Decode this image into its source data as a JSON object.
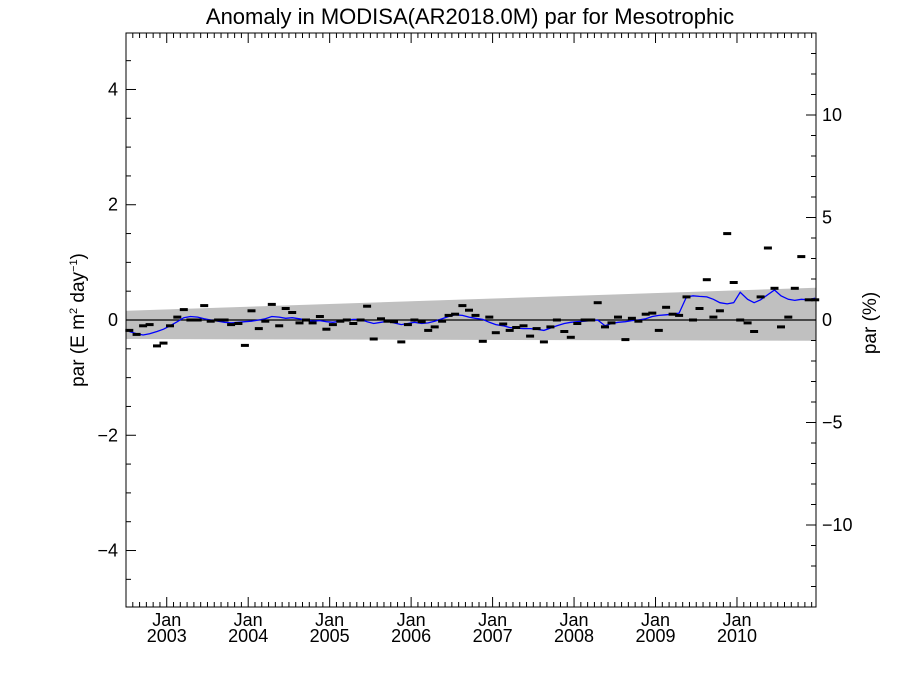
{
  "chart_data": {
    "type": "scatter",
    "title": "Anomaly in MODISA(AR2018.0M) par for Mesotrophic",
    "ylabel_left": "par (E m² day⁻¹)",
    "ylabel_left_parts": {
      "base": "par (E m",
      "sup1": "2",
      "mid": " day",
      "sup2": "−1",
      "end": ")"
    },
    "ylabel_right": "par (%)",
    "xlim": [
      2002.5,
      2010.97
    ],
    "ylim_left": [
      -4.98,
      4.98
    ],
    "ylim_right": [
      -14,
      14
    ],
    "left_ticks": [
      {
        "v": 4,
        "label": "4"
      },
      {
        "v": 2,
        "label": "2"
      },
      {
        "v": 0,
        "label": "0"
      },
      {
        "v": -2,
        "label": "−2"
      },
      {
        "v": -4,
        "label": "−4"
      }
    ],
    "right_ticks": [
      {
        "v": 10,
        "label": "10"
      },
      {
        "v": 5,
        "label": "5"
      },
      {
        "v": 0,
        "label": "0"
      },
      {
        "v": -5,
        "label": "−5"
      },
      {
        "v": -10,
        "label": "−10"
      }
    ],
    "x_ticks": [
      {
        "v": 2003,
        "month": "Jan",
        "year": "2003"
      },
      {
        "v": 2004,
        "month": "Jan",
        "year": "2004"
      },
      {
        "v": 2005,
        "month": "Jan",
        "year": "2005"
      },
      {
        "v": 2006,
        "month": "Jan",
        "year": "2006"
      },
      {
        "v": 2007,
        "month": "Jan",
        "year": "2007"
      },
      {
        "v": 2008,
        "month": "Jan",
        "year": "2008"
      },
      {
        "v": 2009,
        "month": "Jan",
        "year": "2009"
      },
      {
        "v": 2010,
        "month": "Jan",
        "year": "2010"
      }
    ],
    "zero_line": 0,
    "uncertainty_band": {
      "x": [
        2002.5,
        2010.97
      ],
      "upper": [
        0.16,
        0.56
      ],
      "lower": [
        -0.33,
        -0.36
      ],
      "color": "#c0c0c0"
    },
    "series": [
      {
        "style": "dash-marker",
        "color": "#000000",
        "x": [
          2002.54,
          2002.63,
          2002.71,
          2002.79,
          2002.88,
          2002.96,
          2003.04,
          2003.13,
          2003.21,
          2003.29,
          2003.38,
          2003.46,
          2003.54,
          2003.63,
          2003.71,
          2003.79,
          2003.88,
          2003.96,
          2004.04,
          2004.13,
          2004.21,
          2004.29,
          2004.38,
          2004.46,
          2004.54,
          2004.63,
          2004.71,
          2004.79,
          2004.88,
          2004.96,
          2005.04,
          2005.13,
          2005.21,
          2005.29,
          2005.38,
          2005.46,
          2005.54,
          2005.63,
          2005.71,
          2005.79,
          2005.88,
          2005.96,
          2006.04,
          2006.13,
          2006.21,
          2006.29,
          2006.38,
          2006.46,
          2006.54,
          2006.63,
          2006.71,
          2006.79,
          2006.88,
          2006.96,
          2007.04,
          2007.13,
          2007.21,
          2007.29,
          2007.38,
          2007.46,
          2007.54,
          2007.63,
          2007.71,
          2007.79,
          2007.88,
          2007.96,
          2008.04,
          2008.13,
          2008.21,
          2008.29,
          2008.38,
          2008.46,
          2008.54,
          2008.63,
          2008.71,
          2008.79,
          2008.88,
          2008.96,
          2009.04,
          2009.13,
          2009.21,
          2009.29,
          2009.38,
          2009.46,
          2009.54,
          2009.63,
          2009.71,
          2009.79,
          2009.88,
          2009.96,
          2010.04,
          2010.13,
          2010.21,
          2010.29,
          2010.38,
          2010.46,
          2010.54,
          2010.63,
          2010.71,
          2010.79,
          2010.88,
          2010.96
        ],
        "y": [
          -0.18,
          -0.25,
          -0.1,
          -0.08,
          -0.45,
          -0.4,
          -0.1,
          0.05,
          0.18,
          0.0,
          0.0,
          0.25,
          -0.02,
          0.0,
          0.0,
          -0.08,
          -0.06,
          -0.44,
          0.16,
          -0.15,
          -0.02,
          0.27,
          -0.1,
          0.2,
          0.13,
          -0.05,
          0.0,
          -0.05,
          0.06,
          -0.16,
          -0.08,
          -0.02,
          0.0,
          -0.06,
          0.0,
          0.24,
          -0.33,
          0.02,
          -0.02,
          -0.03,
          -0.38,
          -0.08,
          0.0,
          -0.03,
          -0.18,
          -0.12,
          -0.02,
          0.08,
          0.1,
          0.25,
          0.17,
          0.08,
          -0.37,
          0.05,
          -0.22,
          -0.07,
          -0.18,
          -0.13,
          -0.1,
          -0.28,
          -0.15,
          -0.38,
          -0.12,
          0.0,
          -0.2,
          -0.3,
          -0.06,
          0.0,
          0.0,
          0.3,
          -0.12,
          -0.05,
          0.05,
          -0.34,
          0.03,
          -0.02,
          0.1,
          0.12,
          -0.18,
          0.22,
          0.1,
          0.08,
          0.4,
          0.0,
          0.2,
          0.7,
          0.05,
          0.16,
          1.5,
          0.65,
          0.0,
          -0.05,
          -0.2,
          0.4,
          1.25,
          0.55,
          -0.12,
          0.05,
          0.55,
          1.1,
          0.35,
          0.35
        ]
      },
      {
        "style": "line",
        "color": "#0000ff",
        "x": [
          2002.54,
          2002.63,
          2002.71,
          2002.79,
          2002.88,
          2002.96,
          2003.04,
          2003.13,
          2003.21,
          2003.29,
          2003.38,
          2003.46,
          2003.54,
          2003.63,
          2003.71,
          2003.79,
          2003.88,
          2003.96,
          2004.04,
          2004.13,
          2004.21,
          2004.29,
          2004.38,
          2004.46,
          2004.54,
          2004.63,
          2004.71,
          2004.79,
          2004.88,
          2004.96,
          2005.04,
          2005.13,
          2005.21,
          2005.29,
          2005.38,
          2005.46,
          2005.54,
          2005.63,
          2005.71,
          2005.79,
          2005.88,
          2005.96,
          2006.04,
          2006.13,
          2006.21,
          2006.29,
          2006.38,
          2006.46,
          2006.54,
          2006.63,
          2006.71,
          2006.79,
          2006.88,
          2006.96,
          2007.04,
          2007.13,
          2007.21,
          2007.29,
          2007.38,
          2007.46,
          2007.54,
          2007.63,
          2007.71,
          2007.79,
          2007.88,
          2007.96,
          2008.04,
          2008.13,
          2008.21,
          2008.29,
          2008.38,
          2008.46,
          2008.54,
          2008.63,
          2008.71,
          2008.79,
          2008.88,
          2008.96,
          2009.04,
          2009.13,
          2009.21,
          2009.29,
          2009.38,
          2009.46,
          2009.54,
          2009.63,
          2009.71,
          2009.79,
          2009.88,
          2009.96,
          2010.04,
          2010.13,
          2010.21,
          2010.29,
          2010.38,
          2010.46,
          2010.54,
          2010.63,
          2010.71,
          2010.79,
          2010.88,
          2010.96
        ],
        "y": [
          -0.2,
          -0.24,
          -0.26,
          -0.24,
          -0.2,
          -0.16,
          -0.1,
          -0.03,
          0.04,
          0.06,
          0.05,
          0.02,
          0.0,
          -0.02,
          -0.04,
          -0.05,
          -0.04,
          -0.03,
          -0.02,
          0.0,
          0.02,
          0.06,
          0.05,
          0.03,
          0.04,
          0.02,
          0.0,
          -0.02,
          -0.01,
          -0.03,
          -0.04,
          -0.02,
          0.0,
          0.01,
          0.01,
          -0.03,
          -0.06,
          -0.04,
          -0.02,
          -0.05,
          -0.08,
          -0.06,
          -0.04,
          -0.06,
          -0.05,
          -0.02,
          0.02,
          0.06,
          0.09,
          0.08,
          0.05,
          0.03,
          0.01,
          -0.04,
          -0.08,
          -0.1,
          -0.13,
          -0.14,
          -0.15,
          -0.15,
          -0.16,
          -0.18,
          -0.14,
          -0.1,
          -0.06,
          -0.04,
          -0.03,
          -0.02,
          -0.01,
          0.0,
          -0.1,
          -0.06,
          -0.04,
          -0.03,
          -0.01,
          0.0,
          0.02,
          0.06,
          0.08,
          0.09,
          0.1,
          0.12,
          0.4,
          0.42,
          0.41,
          0.4,
          0.36,
          0.3,
          0.28,
          0.3,
          0.48,
          0.36,
          0.3,
          0.35,
          0.44,
          0.52,
          0.42,
          0.36,
          0.34,
          0.36,
          0.35,
          0.38
        ]
      }
    ]
  }
}
